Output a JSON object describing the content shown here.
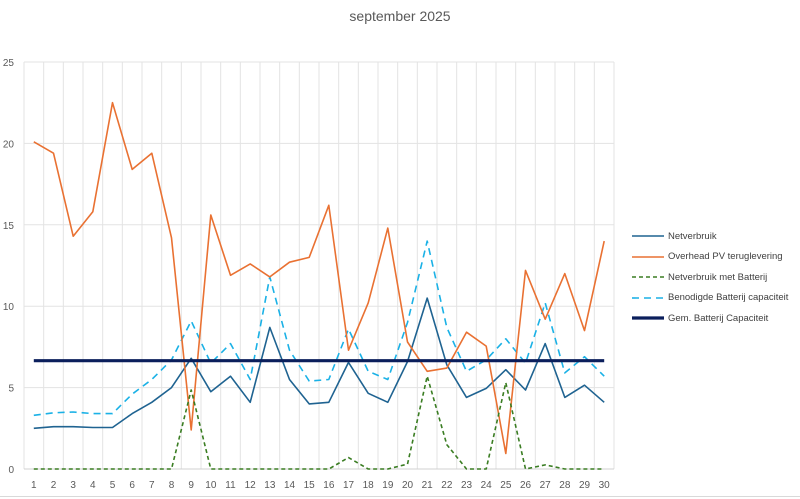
{
  "chart_data": {
    "type": "line",
    "title": "september 2025",
    "xlabel": "",
    "ylabel": "",
    "ylim": [
      0,
      25
    ],
    "yticks": [
      0,
      5,
      10,
      15,
      20,
      25
    ],
    "grid": true,
    "legend_position": "right",
    "categories": [
      "1",
      "2",
      "3",
      "4",
      "5",
      "6",
      "7",
      "8",
      "9",
      "10",
      "11",
      "12",
      "13",
      "14",
      "15",
      "16",
      "17",
      "18",
      "19",
      "20",
      "21",
      "22",
      "23",
      "24",
      "25",
      "26",
      "27",
      "28",
      "29",
      "30"
    ],
    "series": [
      {
        "name": "Netverbruik",
        "color": "#1F6391",
        "style": "solid",
        "width": 1.6,
        "values": [
          2.5,
          2.6,
          2.6,
          2.55,
          2.55,
          3.4,
          4.1,
          5.0,
          6.8,
          4.75,
          5.7,
          4.1,
          8.7,
          5.5,
          4.0,
          4.1,
          6.55,
          4.65,
          4.1,
          6.6,
          10.5,
          6.4,
          4.4,
          4.95,
          6.1,
          4.85,
          7.7,
          4.4,
          5.15,
          4.1
        ]
      },
      {
        "name": "Overhead PV teruglevering",
        "color": "#E97132",
        "style": "solid",
        "width": 1.6,
        "values": [
          20.1,
          19.4,
          14.3,
          15.8,
          22.5,
          18.4,
          19.4,
          14.2,
          2.4,
          15.6,
          11.9,
          12.6,
          11.8,
          12.7,
          13.0,
          16.2,
          7.3,
          10.2,
          14.8,
          7.8,
          6.0,
          6.2,
          8.4,
          7.55,
          0.95,
          12.2,
          9.2,
          12.0,
          8.5,
          14.0
        ]
      },
      {
        "name": "Netverbruik met Batterij",
        "color": "#3A7D22",
        "style": "dashed-short",
        "width": 1.6,
        "values": [
          0,
          0,
          0,
          0,
          0,
          0,
          0,
          0,
          4.85,
          0,
          0,
          0,
          0,
          0,
          0,
          0,
          0.7,
          0,
          0,
          0.3,
          5.7,
          1.5,
          0,
          0,
          5.3,
          0,
          0.25,
          0,
          0,
          0
        ]
      },
      {
        "name": "Benodigde Batterij capaciteit",
        "color": "#1AB1E6",
        "style": "dashed-long",
        "width": 1.6,
        "values": [
          3.3,
          3.45,
          3.5,
          3.4,
          3.4,
          4.6,
          5.5,
          6.7,
          9.1,
          6.5,
          7.7,
          5.5,
          11.8,
          7.3,
          5.4,
          5.5,
          8.6,
          6.0,
          5.5,
          9.0,
          14.0,
          8.7,
          6.0,
          6.7,
          8.0,
          6.5,
          10.2,
          5.9,
          6.9,
          5.7
        ]
      },
      {
        "name": "Gem. Batterij Capaciteit",
        "color": "#0B1F5C",
        "style": "solid",
        "width": 3.2,
        "values": [
          6.65,
          6.65,
          6.65,
          6.65,
          6.65,
          6.65,
          6.65,
          6.65,
          6.65,
          6.65,
          6.65,
          6.65,
          6.65,
          6.65,
          6.65,
          6.65,
          6.65,
          6.65,
          6.65,
          6.65,
          6.65,
          6.65,
          6.65,
          6.65,
          6.65,
          6.65,
          6.65,
          6.65,
          6.65,
          6.65
        ]
      }
    ]
  }
}
